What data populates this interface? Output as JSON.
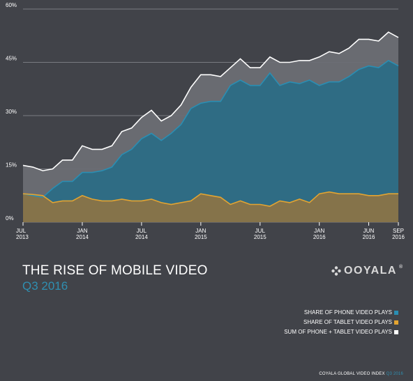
{
  "header": {
    "title": "THE RISE OF MOBILE VIDEO",
    "subtitle": "Q3 2016",
    "brand": "OOYALA",
    "brand_mark": "®"
  },
  "legend": [
    {
      "label": "SHARE OF PHONE VIDEO PLAYS",
      "color": "#2a8eb3"
    },
    {
      "label": "SHARE OF TABLET VIDEO PLAYS",
      "color": "#e3a431"
    },
    {
      "label": "SUM OF PHONE + TABLET VIDEO PLAYS",
      "color": "#ffffff"
    }
  ],
  "footer": {
    "text": "COYALA GLOBAL VIDEO INDEX",
    "accent": "Q3 2016"
  },
  "colors": {
    "background": "#414349",
    "grid": "#7a7c82",
    "phone_fill": "#2c6d85",
    "tablet_fill": "#8a7447",
    "sum_fill": "#6c6e74"
  },
  "chart_data": {
    "type": "area",
    "title": "THE RISE OF MOBILE VIDEO",
    "subtitle": "Q3 2016",
    "ylim": [
      0,
      60
    ],
    "yticks": [
      "0%",
      "15%",
      "30%",
      "45%",
      "60%"
    ],
    "ytick_values": [
      0,
      15,
      30,
      45,
      60
    ],
    "grid": true,
    "legend_position": "bottom-right",
    "x_tick_labels": [
      {
        "index": 0,
        "lines": [
          "JUL",
          "2013"
        ]
      },
      {
        "index": 10,
        "lines": [
          "JAN",
          "2014"
        ]
      },
      {
        "index": 20,
        "lines": [
          "JUL",
          "2014"
        ]
      },
      {
        "index": 30,
        "lines": [
          "JAN",
          "2015"
        ]
      },
      {
        "index": 40,
        "lines": [
          "JUL",
          "2015"
        ]
      },
      {
        "index": 50,
        "lines": [
          "JAN",
          "2016"
        ]
      },
      {
        "index": 59,
        "lines": [
          "JUN",
          "2016"
        ]
      },
      {
        "index": 63,
        "lines": [
          "SEP",
          "2016"
        ]
      }
    ],
    "x": [
      "Jul 2013",
      "Aug 2013",
      "Sep 2013",
      "Oct 2013",
      "Nov 2013",
      "Dec 2013",
      "Jan 2014",
      "Feb 2014",
      "Mar 2014",
      "Apr 2014",
      "May 2014",
      "Jun 2014",
      "Jul 2014",
      "Aug 2014",
      "Sep 2014",
      "Oct 2014",
      "Nov 2014",
      "Dec 2014",
      "Jan 2015",
      "Feb 2015",
      "Mar 2015",
      "Apr 2015",
      "May 2015",
      "Jun 2015",
      "Jul 2015",
      "Aug 2015",
      "Sep 2015",
      "Oct 2015",
      "Nov 2015",
      "Dec 2015",
      "Jan 2016",
      "Feb 2016",
      "Mar 2016",
      "Apr 2016",
      "May 2016",
      "Jun 2016",
      "Jul 2016",
      "Aug 2016",
      "Sep 2016"
    ],
    "series": [
      {
        "name": "SHARE OF PHONE VIDEO PLAYS",
        "values": [
          8.0,
          7.5,
          7.0,
          9.5,
          11.5,
          11.5,
          14.0,
          14.0,
          14.5,
          15.5,
          19.0,
          20.5,
          23.5,
          25.0,
          23.0,
          25.0,
          27.5,
          32.0,
          33.5,
          34.0,
          34.0,
          38.5,
          40.0,
          38.5,
          38.5,
          42.0,
          38.5,
          39.5,
          39.0,
          40.0,
          38.5,
          39.5,
          39.5,
          41.0,
          43.0,
          44.0,
          43.5,
          45.5,
          44.0
        ]
      },
      {
        "name": "SHARE OF TABLET VIDEO PLAYS",
        "values": [
          8.0,
          7.8,
          7.5,
          5.5,
          6.0,
          6.0,
          7.5,
          6.5,
          6.0,
          6.0,
          6.5,
          6.0,
          6.0,
          6.5,
          5.5,
          5.0,
          5.5,
          6.0,
          8.0,
          7.5,
          7.0,
          5.0,
          6.0,
          5.0,
          5.0,
          4.5,
          6.0,
          5.5,
          6.5,
          5.5,
          8.0,
          8.5,
          8.0,
          8.0,
          8.0,
          7.5,
          7.5,
          8.0,
          8.0
        ]
      },
      {
        "name": "SUM OF PHONE + TABLET VIDEO PLAYS",
        "values": [
          16.0,
          15.5,
          14.5,
          15.0,
          17.5,
          17.5,
          21.5,
          20.5,
          20.5,
          21.5,
          25.5,
          26.5,
          29.5,
          31.5,
          28.5,
          30.0,
          33.0,
          38.0,
          41.5,
          41.5,
          41.0,
          43.5,
          46.0,
          43.5,
          43.5,
          46.5,
          45.0,
          45.0,
          45.5,
          45.5,
          46.5,
          48.0,
          47.5,
          49.0,
          51.5,
          51.5,
          51.0,
          53.5,
          52.0
        ]
      }
    ]
  }
}
